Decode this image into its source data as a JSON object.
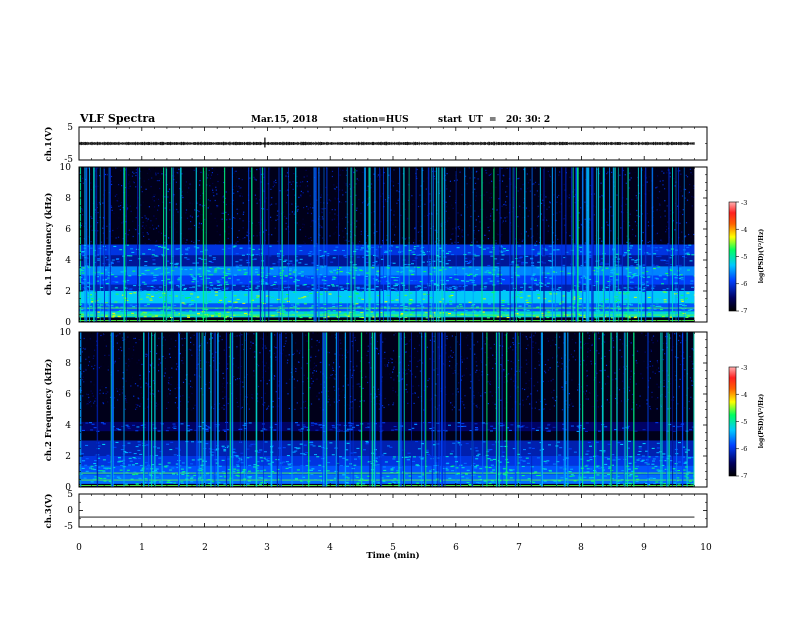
{
  "header": {
    "title": "VLF Spectra",
    "date": "Mar.15, 2018",
    "station": "station=HUS",
    "start": "start  UT  =   20: 30: 2"
  },
  "colors": {
    "background": "#ffffff",
    "spectrogram_dark": "#000018",
    "waveform": "#000000"
  },
  "chart_data": [
    {
      "type": "line",
      "id": "ch1_waveform",
      "ylabel": "ch.1(V)",
      "ylim": [
        -5,
        5
      ],
      "yticks": [
        5,
        -5
      ],
      "xlim": [
        0,
        10
      ],
      "x": [
        0,
        9.8
      ],
      "values": [
        0,
        0
      ],
      "amplitude_approx": 0.4
    },
    {
      "type": "heatmap",
      "id": "ch1_spectrogram",
      "ylabel": "ch.1 Frequency (kHz)",
      "ylim": [
        0,
        10
      ],
      "yticks": [
        "0",
        "2",
        "4",
        "6",
        "8",
        "10"
      ],
      "xlim": [
        0,
        10
      ],
      "data_x_end": 9.8,
      "colorbar": {
        "label": "log(PSD)(V²/Hz)",
        "range": [
          -7,
          -3
        ],
        "ticks": [
          "-3",
          "-4",
          "-5",
          "-6",
          "-7"
        ]
      },
      "bands_khz": [
        {
          "from": 0.3,
          "to": 0.7,
          "level": -4.8
        },
        {
          "from": 0.7,
          "to": 1.2,
          "level": -5.4
        },
        {
          "from": 1.2,
          "to": 2.0,
          "level": -4.9
        },
        {
          "from": 2.0,
          "to": 2.4,
          "level": -5.8
        },
        {
          "from": 2.4,
          "to": 3.0,
          "level": -5.5
        },
        {
          "from": 3.0,
          "to": 3.6,
          "level": -5.2
        },
        {
          "from": 3.6,
          "to": 4.3,
          "level": -5.9
        },
        {
          "from": 4.3,
          "to": 5.0,
          "level": -5.6
        }
      ]
    },
    {
      "type": "heatmap",
      "id": "ch2_spectrogram",
      "ylabel": "ch.2 Frequency (kHz)",
      "ylim": [
        0,
        10
      ],
      "yticks": [
        "0",
        "2",
        "4",
        "6",
        "8",
        "10"
      ],
      "xlim": [
        0,
        10
      ],
      "data_x_end": 9.8,
      "colorbar": {
        "label": "log(PSD)(V²/Hz)",
        "range": [
          -7,
          -3
        ],
        "ticks": [
          "-3",
          "-4",
          "-5",
          "-6",
          "-7"
        ]
      },
      "bands_khz": [
        {
          "from": 0.2,
          "to": 0.8,
          "level": -5.3
        },
        {
          "from": 0.8,
          "to": 1.4,
          "level": -5.4
        },
        {
          "from": 1.4,
          "to": 2.0,
          "level": -5.6
        },
        {
          "from": 2.0,
          "to": 3.0,
          "level": -5.8
        },
        {
          "from": 3.6,
          "to": 4.2,
          "level": -6.1
        }
      ]
    },
    {
      "type": "line",
      "id": "ch3_waveform",
      "ylabel": "ch.3(V)",
      "ylim": [
        -5,
        5
      ],
      "yticks": [
        5,
        0,
        -5
      ],
      "xlim": [
        0,
        10
      ],
      "x": [
        0,
        9.8
      ],
      "values": [
        -2,
        -2
      ],
      "xlabel": "Time (min)",
      "xticks": [
        "0",
        "1",
        "2",
        "3",
        "4",
        "5",
        "6",
        "7",
        "8",
        "9",
        "10"
      ]
    }
  ]
}
